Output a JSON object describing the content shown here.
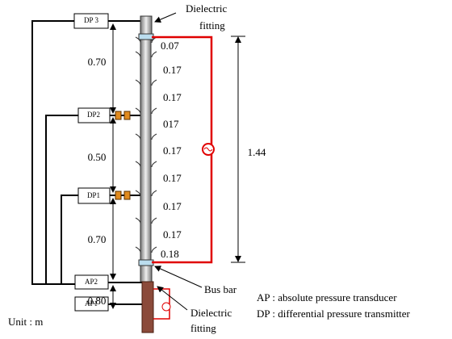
{
  "instruments": [
    "DP 3",
    "DP2",
    "DP1",
    "AP2",
    "AP1"
  ],
  "spacings": [
    "0.70",
    "0.50",
    "0.70",
    "0.80"
  ],
  "tap_spacings": [
    "0.07",
    "0.17",
    "0.17",
    "017",
    "0.17",
    "0.17",
    "0.17",
    "0.17",
    "0.18"
  ],
  "total_length": "1.44",
  "top_fitting": [
    "Dielectric",
    "fitting"
  ],
  "bus_bar": "Bus bar",
  "bottom_fitting": [
    "Dielectric",
    "fitting"
  ],
  "legend": [
    "AP : absolute pressure transducer",
    "DP : differential pressure transmitter"
  ],
  "unit": "Unit : m"
}
